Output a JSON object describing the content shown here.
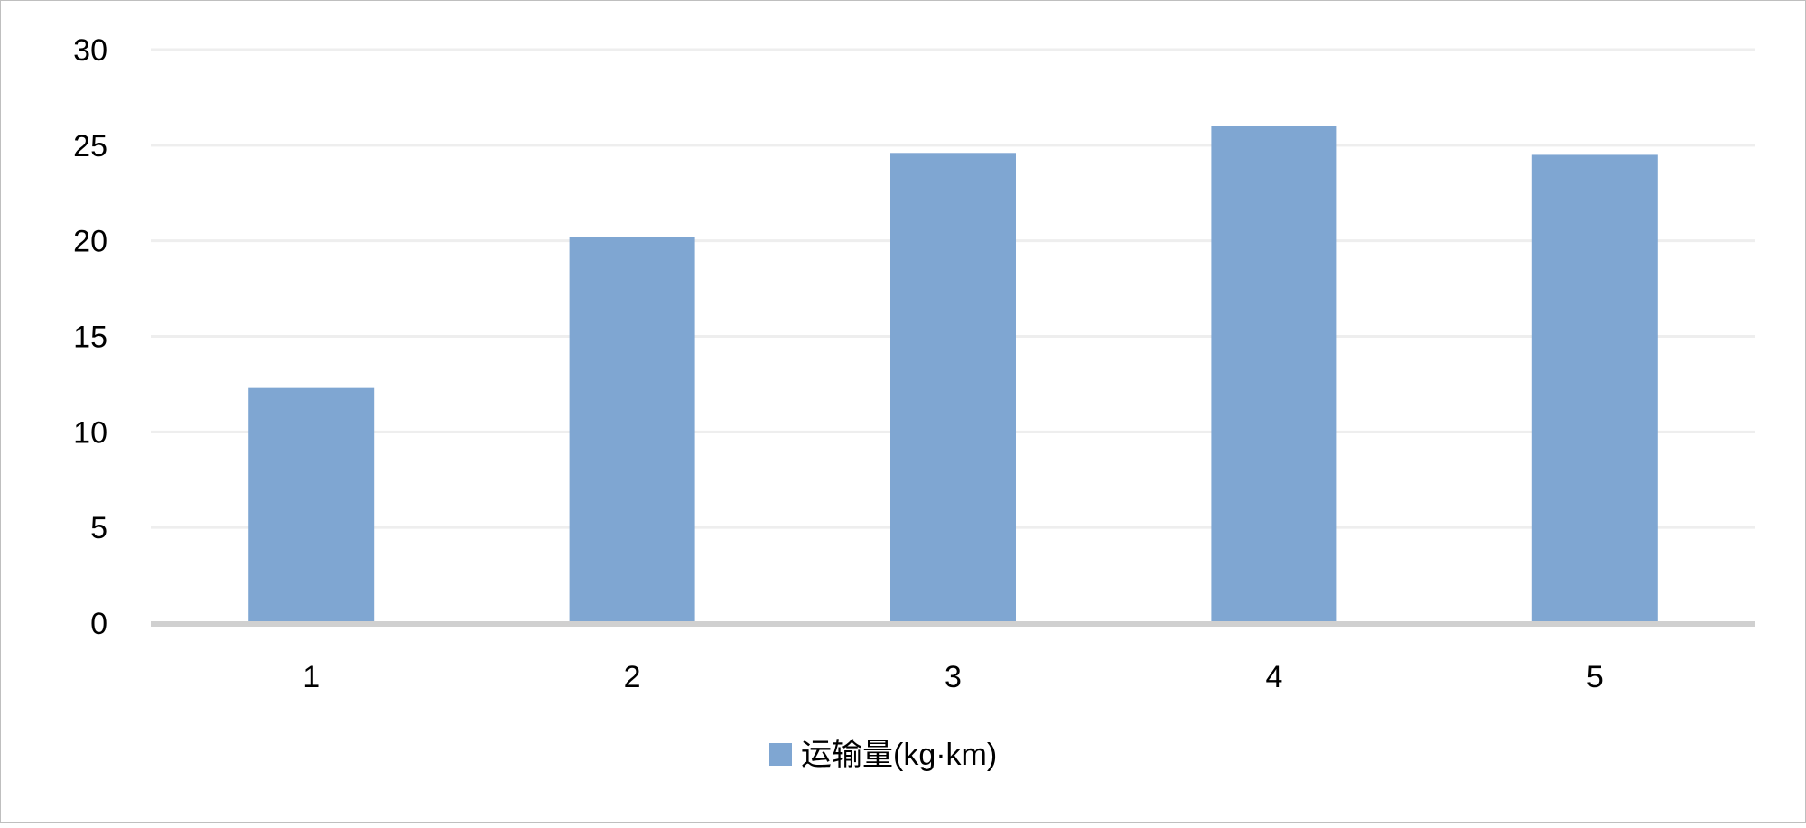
{
  "chart_data": {
    "type": "bar",
    "title": "",
    "xlabel": "",
    "ylabel": "",
    "categories": [
      "1",
      "2",
      "3",
      "4",
      "5"
    ],
    "series": [
      {
        "name": "运输量(kg·km)",
        "values": [
          12.3,
          20.2,
          24.6,
          26.0,
          24.5
        ],
        "color": "#7fa6d2"
      }
    ],
    "ylim": [
      0,
      30
    ],
    "yticks": [
      0,
      5,
      10,
      15,
      20,
      25,
      30
    ],
    "grid": true,
    "legend": "bottom"
  }
}
